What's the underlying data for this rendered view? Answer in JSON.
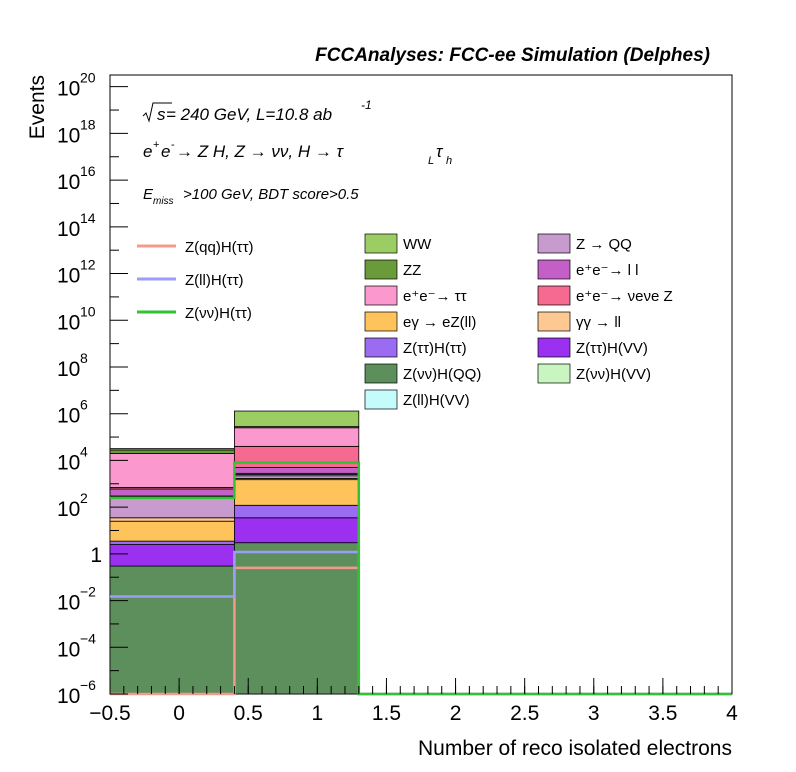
{
  "header": {
    "title": "FCCAnalyses: FCC-ee Simulation (Delphes)"
  },
  "annotations": {
    "energy_sqrt": "s",
    "energy_rest": " = 240 GeV, L=10.8 ab",
    "energy_exp": "-1",
    "process": {
      "p1": "e",
      "p1_sup": "+",
      "p2": "e",
      "p2_sup": "-",
      "rest1": " → Z H, Z  → νν, H  → τ",
      "tau1_sub": "L",
      "tau2": "τ",
      "tau2_sub": "h"
    },
    "cuts": {
      "e": "E",
      "e_sub": "miss",
      "rest": ">100 GeV, BDT score>0.5"
    }
  },
  "chart_data": {
    "type": "bar",
    "stacked": true,
    "log_y": true,
    "title": "",
    "xlabel": "Number of reco isolated electrons",
    "ylabel": "Events",
    "xlim": [
      -0.5,
      4
    ],
    "ylim_exp": [
      -6,
      20.5
    ],
    "x_ticks": [
      "−0.5",
      "0",
      "0.5",
      "1",
      "1.5",
      "2",
      "2.5",
      "3",
      "3.5",
      "4"
    ],
    "y_ticks": [
      {
        "base": "10",
        "exp": "−6"
      },
      {
        "base": "10",
        "exp": "−4"
      },
      {
        "base": "10",
        "exp": "−2"
      },
      {
        "base": "1",
        "exp": ""
      },
      {
        "base": "10",
        "exp": "2"
      },
      {
        "base": "10",
        "exp": "4"
      },
      {
        "base": "10",
        "exp": "6"
      },
      {
        "base": "10",
        "exp": "8"
      },
      {
        "base": "10",
        "exp": "10"
      },
      {
        "base": "10",
        "exp": "12"
      },
      {
        "base": "10",
        "exp": "14"
      },
      {
        "base": "10",
        "exp": "16"
      },
      {
        "base": "10",
        "exp": "18"
      },
      {
        "base": "10",
        "exp": "20"
      }
    ],
    "bin_edges": [
      -0.5,
      0.4,
      1.3,
      4.0
    ],
    "stack_order_bottom_to_top": [
      {
        "name": "Z(νν)H(QQ)",
        "color": "#5d8f5d",
        "stack_tops": [
          0.3,
          3.0,
          0.0
        ]
      },
      {
        "name": "Z(ττ)H(VV)",
        "color": "#9b30f0",
        "stack_tops": [
          2.5,
          35,
          0.0
        ]
      },
      {
        "name": "Z(ττ)H(ττ)",
        "color": "#9b6cf2",
        "stack_tops": [
          3.5,
          120,
          0.0
        ]
      },
      {
        "name": "eγ → eZ(ll)",
        "color": "#fec35b",
        "stack_tops": [
          25,
          1500,
          0.0
        ]
      },
      {
        "name": "γγ → ll",
        "color": "#fdc891",
        "stack_tops": [
          35,
          1700,
          0.0
        ]
      },
      {
        "name": "Z → QQ",
        "color": "#c79bcd",
        "stack_tops": [
          280,
          2200,
          0.0
        ]
      },
      {
        "name": "Z(νν)H(VV)",
        "color": "#c8f5c0",
        "stack_tops": [
          290,
          2500,
          0.0
        ]
      },
      {
        "name": "Z(ll)H(VV)",
        "color": "#c6fbfb",
        "stack_tops": [
          300,
          2800,
          0.0
        ]
      },
      {
        "name": "e⁺e⁻→ l l",
        "color": "#c45fc8",
        "stack_tops": [
          600,
          5000,
          0.0
        ]
      },
      {
        "name": "e⁺e⁻→ νeνe Z",
        "color": "#f66a92",
        "stack_tops": [
          700,
          40000,
          0.0
        ]
      },
      {
        "name": "e⁺e⁻→ ττ",
        "color": "#fb99cf",
        "stack_tops": [
          20000,
          250000,
          0.0
        ]
      },
      {
        "name": "ZZ",
        "color": "#6a9a39",
        "stack_tops": [
          28000,
          280000,
          0.0
        ]
      },
      {
        "name": "WW",
        "color": "#9ccd62",
        "stack_tops": [
          32000,
          1300000,
          0.0
        ]
      }
    ],
    "signal_lines": [
      {
        "name": "Z(qq)H(ττ)",
        "color": "#f39a8c",
        "values": [
          1e-06,
          0.25,
          1e-06
        ]
      },
      {
        "name": "Z(ll)H(ττ)",
        "color": "#9d9df7",
        "values": [
          0.015,
          1.2,
          1e-06
        ]
      },
      {
        "name": "Z(νν)H(ττ)",
        "color": "#33c233",
        "values": [
          250,
          8000,
          1e-06
        ]
      }
    ],
    "legend": {
      "signals": [
        {
          "label": "Z(qq)H(ττ)",
          "color": "#f39a8c"
        },
        {
          "label": "Z(ll)H(ττ)",
          "color": "#9d9df7"
        },
        {
          "label": "Z(νν)H(ττ)",
          "color": "#33c233"
        }
      ],
      "backgrounds": [
        {
          "label": "WW",
          "color": "#9ccd62",
          "sup": ""
        },
        {
          "label": "Z → QQ",
          "color": "#c79bcd"
        },
        {
          "label": "ZZ",
          "color": "#6a9a39"
        },
        {
          "label": "e⁺e⁻→ l l",
          "color": "#c45fc8"
        },
        {
          "label": "e⁺e⁻→ ττ",
          "color": "#fb99cf"
        },
        {
          "label": "e⁺e⁻→ νeνe Z",
          "color": "#f66a92"
        },
        {
          "label": "eγ → eZ(ll)",
          "color": "#fec35b"
        },
        {
          "label": "γγ → ll",
          "color": "#fdc891"
        },
        {
          "label": "Z(ττ)H(ττ)",
          "color": "#9b6cf2"
        },
        {
          "label": "Z(ττ)H(VV)",
          "color": "#9b30f0"
        },
        {
          "label": "Z(νν)H(QQ)",
          "color": "#5d8f5d"
        },
        {
          "label": "Z(νν)H(VV)",
          "color": "#c8f5c0"
        },
        {
          "label": "Z(ll)H(VV)",
          "color": "#c6fbfb"
        }
      ]
    },
    "grid": false,
    "legend_placement": "top-right inside"
  }
}
